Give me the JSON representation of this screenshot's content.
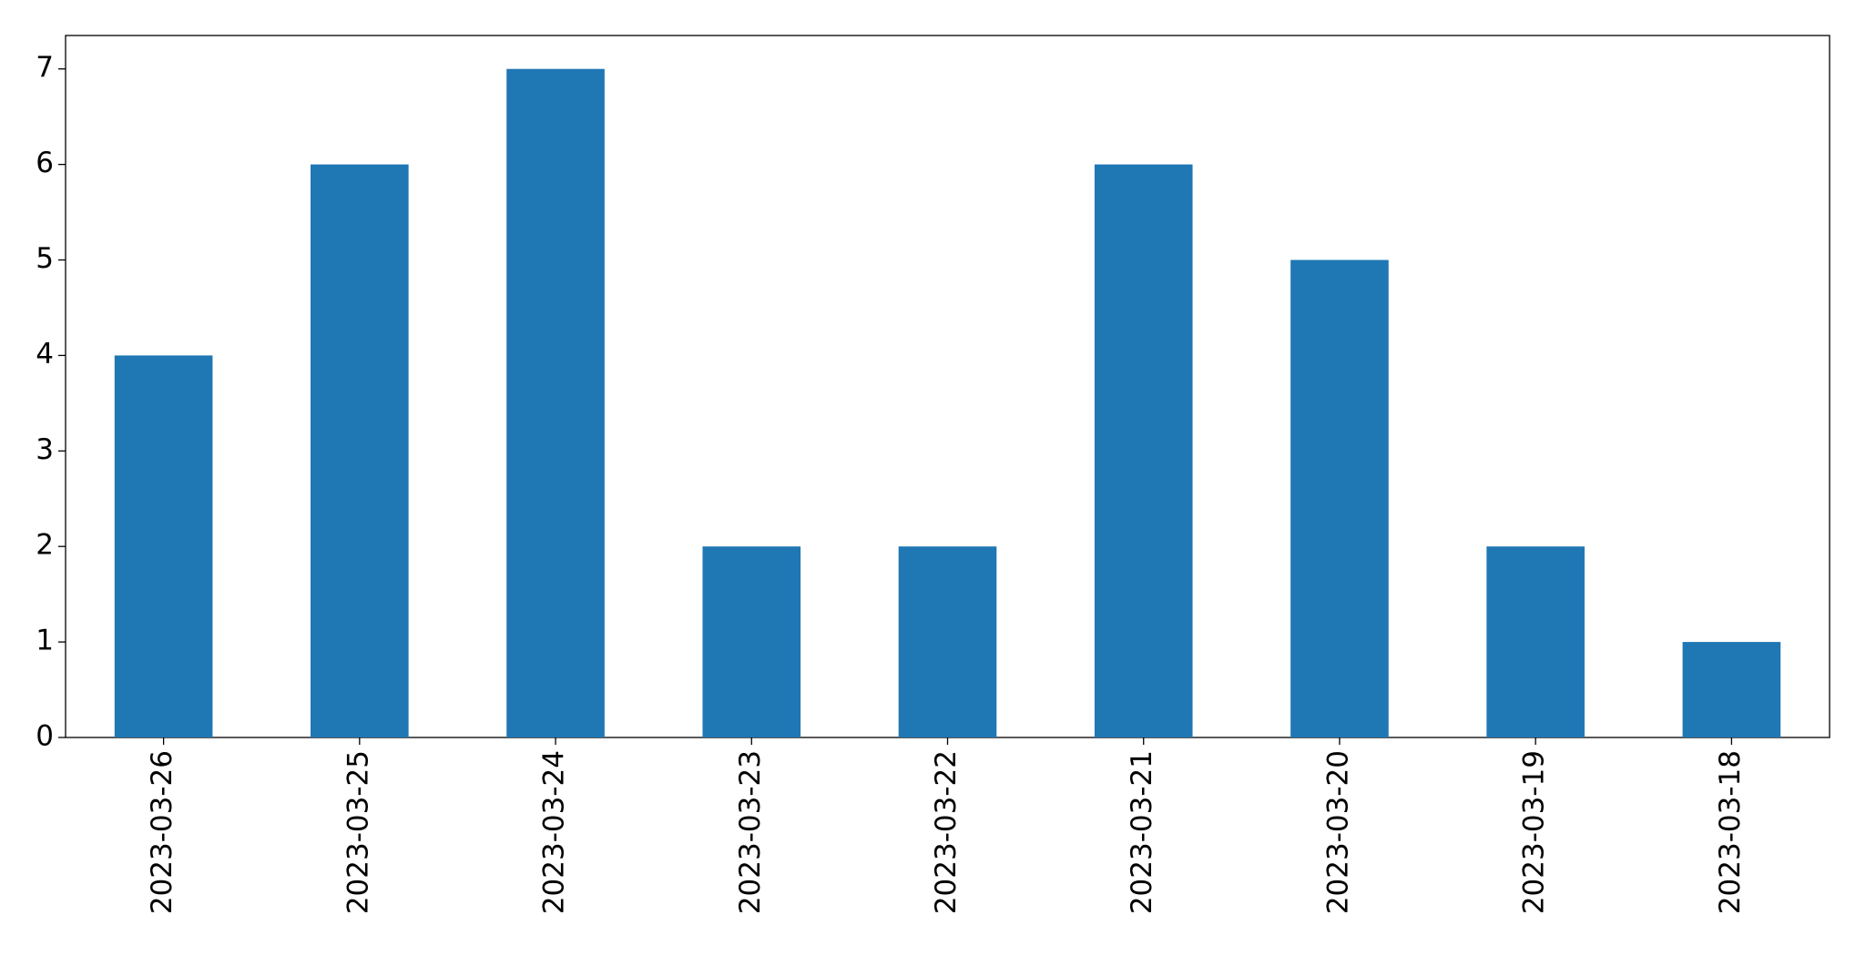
{
  "chart_data": {
    "type": "bar",
    "categories": [
      "2023-03-26",
      "2023-03-25",
      "2023-03-24",
      "2023-03-23",
      "2023-03-22",
      "2023-03-21",
      "2023-03-20",
      "2023-03-19",
      "2023-03-18"
    ],
    "values": [
      4,
      6,
      7,
      2,
      2,
      6,
      5,
      2,
      1
    ],
    "color": "#1f77b4",
    "ylim": [
      0,
      7.35
    ],
    "yticks": [
      0,
      1,
      2,
      3,
      4,
      5,
      6,
      7
    ],
    "grid": false
  }
}
